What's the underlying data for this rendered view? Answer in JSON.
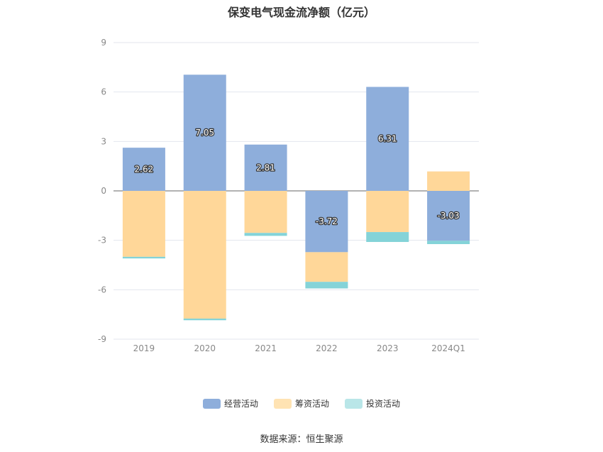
{
  "chart_data": {
    "type": "bar",
    "stacked": true,
    "title": "保变电气现金流净额（亿元）",
    "categories": [
      "2019",
      "2020",
      "2021",
      "2022",
      "2023",
      "2024Q1"
    ],
    "ylim": [
      -9,
      9
    ],
    "yticks": [
      9,
      6,
      3,
      0,
      -3,
      -6,
      -9
    ],
    "grid": true,
    "legend_position": "bottom",
    "series": [
      {
        "name": "经营活动",
        "color": "#8eaedb",
        "values": [
          2.62,
          7.05,
          2.81,
          -3.72,
          6.31,
          -3.03
        ],
        "labels": [
          "2.62",
          "7.05",
          "2.81",
          "-3.72",
          "6.31",
          "-3.03"
        ]
      },
      {
        "name": "筹资活动",
        "color": "#ffd799",
        "values": [
          -4.0,
          -7.75,
          -2.55,
          -1.8,
          -2.5,
          1.18
        ]
      },
      {
        "name": "投资活动",
        "color": "#84d3d8",
        "values": [
          -0.1,
          -0.1,
          -0.18,
          -0.4,
          -0.6,
          -0.2
        ]
      }
    ]
  },
  "legend": {
    "items": [
      {
        "label": "经营活动",
        "color": "#8eaedb"
      },
      {
        "label": "筹资活动",
        "color": "#ffe3b3"
      },
      {
        "label": "投资活动",
        "color": "#b9e6e8"
      }
    ]
  },
  "source": "数据来源：恒生聚源"
}
